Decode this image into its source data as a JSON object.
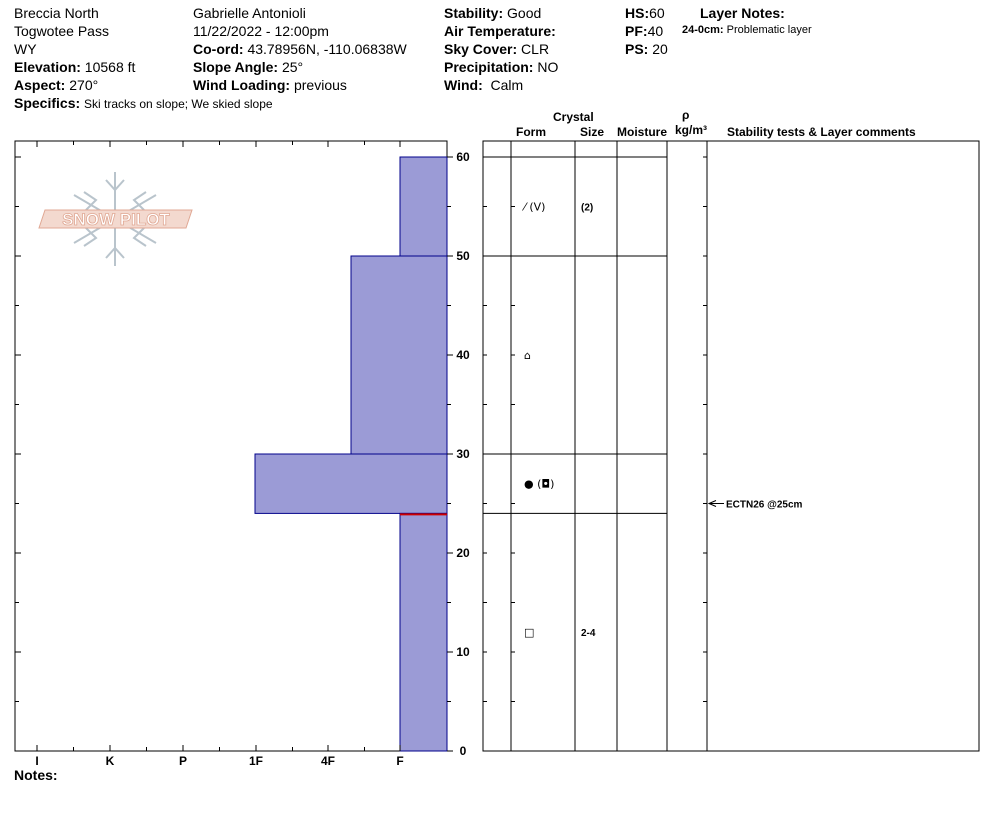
{
  "header": {
    "location": "Breccia North",
    "range": "Togwotee Pass",
    "state": "WY",
    "elevation_label": "Elevation:",
    "elevation_value": "10568 ft",
    "aspect_label": "Aspect:",
    "aspect_value": "270°",
    "specifics_label": "Specifics:",
    "specifics_value": "Ski tracks on slope; We skied slope",
    "observer": "Gabrielle Antonioli",
    "datetime": "11/22/2022 - 12:00pm",
    "coord_label": "Co-ord:",
    "coord_value": "43.78956N, -110.06838W",
    "slope_label": "Slope Angle:",
    "slope_value": "25°",
    "wind_loading_label": "Wind Loading:",
    "wind_loading_value": "previous",
    "stability_label": "Stability:",
    "stability_value": "Good",
    "air_temp_label": "Air Temperature:",
    "air_temp_value": "",
    "sky_label": "Sky Cover:",
    "sky_value": "CLR",
    "precip_label": "Precipitation:",
    "precip_value": "NO",
    "wind_label": "Wind:",
    "wind_value": "Calm",
    "hs_label": "HS:",
    "hs_value": "60",
    "pf_label": "PF:",
    "pf_value": "40",
    "ps_label": "PS:",
    "ps_value": "20",
    "layer_notes_label": "Layer Notes:",
    "layer_notes_depth": "24-0cm:",
    "layer_notes_text": "Problematic layer"
  },
  "logo_text": "SNOW PILOT",
  "columns": {
    "crystal": "Crystal",
    "form": "Form",
    "size": "Size",
    "moisture": "Moisture",
    "rho": "ρ",
    "density": "kg/m³",
    "stability": "Stability tests & Layer comments"
  },
  "notes_label": "Notes:",
  "colors": {
    "layer_fill": "#9b9bd6",
    "layer_stroke": "#00008b",
    "problem_line": "#cc0000",
    "logo_text": "#e8b4a4",
    "logo_snowflake": "#b9c4cc"
  },
  "chart_data": {
    "type": "snow-profile",
    "y_unit": "cm",
    "y_range": [
      0,
      60
    ],
    "y_ticks": [
      0,
      10,
      20,
      30,
      40,
      50,
      60
    ],
    "hardness_scale": [
      "I",
      "K",
      "P",
      "1F",
      "4F",
      "F"
    ],
    "layers": [
      {
        "top": 60,
        "bottom": 50,
        "hardness": "F",
        "form": "⁄ (V)",
        "size": "(2)"
      },
      {
        "top": 50,
        "bottom": 30,
        "hardness": "4F-",
        "form": "⌂",
        "size": ""
      },
      {
        "top": 30,
        "bottom": 24,
        "hardness": "1F-",
        "form": "● (◘)",
        "size": ""
      },
      {
        "top": 24,
        "bottom": 0,
        "hardness": "F",
        "form": "□",
        "size": "2-4"
      }
    ],
    "problematic_layer_depth": 24,
    "stability_tests": [
      {
        "depth": 25,
        "label": "ECTN26 @25cm"
      }
    ]
  }
}
